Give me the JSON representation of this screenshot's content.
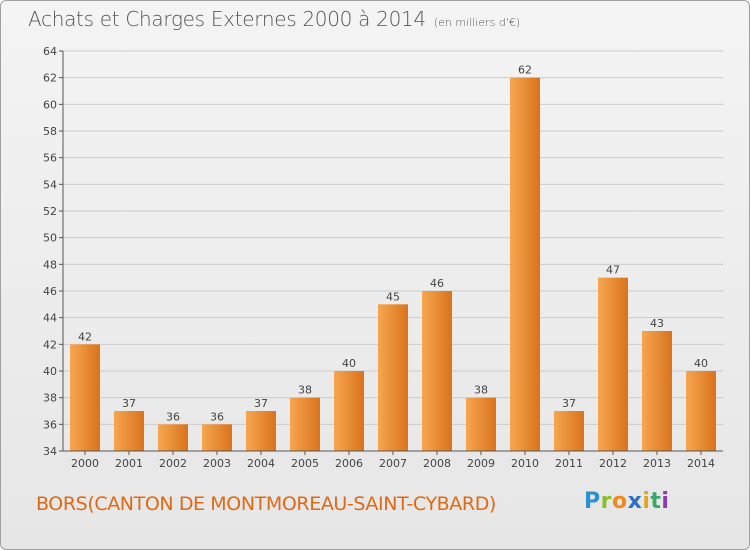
{
  "title": "Achats et Charges Externes 2000 à 2014",
  "subtitle": "(en milliers d'€)",
  "footer": "BORS(CANTON DE MONTMOREAU-SAINT-CYBARD)",
  "logo": {
    "letters": [
      "P",
      "r",
      "o",
      "x",
      "i",
      "t",
      "i"
    ],
    "colors": [
      "#2e8fd0",
      "#8cbf2a",
      "#f08a1e",
      "#2e6fc8",
      "#e2a51f",
      "#3aa86c",
      "#8a3cb5"
    ]
  },
  "colors": {
    "bar_light": "#f7a650",
    "bar_dark": "#d9731c",
    "axis": "#555555",
    "grid": "#cccccc",
    "footer_text": "#e06a14"
  },
  "chart_data": {
    "type": "bar",
    "categories": [
      "2000",
      "2001",
      "2002",
      "2003",
      "2004",
      "2005",
      "2006",
      "2007",
      "2008",
      "2009",
      "2010",
      "2011",
      "2012",
      "2013",
      "2014"
    ],
    "values": [
      42,
      37,
      36,
      36,
      37,
      38,
      40,
      45,
      46,
      38,
      62,
      37,
      47,
      43,
      40
    ],
    "ylim": [
      34,
      64
    ],
    "yticks": [
      34,
      36,
      38,
      40,
      42,
      44,
      46,
      48,
      50,
      52,
      54,
      56,
      58,
      60,
      62,
      64
    ],
    "xlabel": "",
    "ylabel": "",
    "grid": true,
    "data_labels": true
  }
}
